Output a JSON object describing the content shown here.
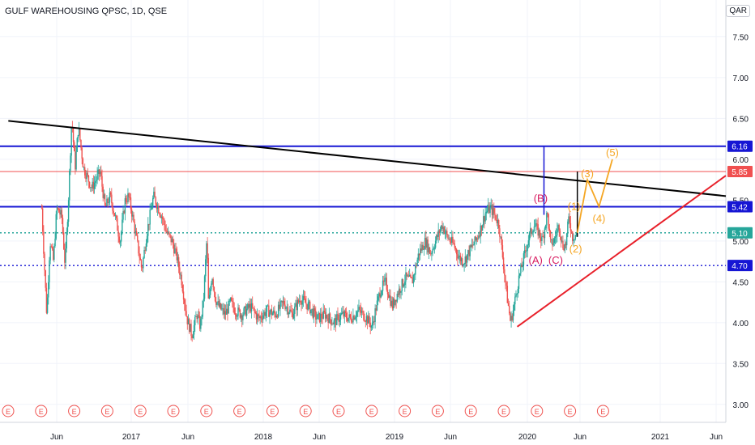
{
  "header": {
    "title": "GULF WAREHOUSING QPSC, 1D, QSE",
    "currency": "QAR"
  },
  "chart_data": {
    "type": "candlestick",
    "x_ticks": [
      "Jun",
      "2017",
      "Jun",
      "2018",
      "Jun",
      "2019",
      "Jun",
      "2020",
      "Jun",
      "2021",
      "Jun"
    ],
    "y_ticks": [
      "7.50",
      "7.00",
      "6.50",
      "6.00",
      "5.50",
      "5.00",
      "4.50",
      "4.00",
      "3.50",
      "3.00"
    ],
    "y_tick_values": [
      7.5,
      7.0,
      6.5,
      6.0,
      5.5,
      5.0,
      4.5,
      4.0,
      3.5,
      3.0
    ],
    "ylim": [
      2.78,
      7.95
    ],
    "price_path": [
      [
        0.0,
        5.4
      ],
      [
        0.03,
        4.1
      ],
      [
        0.05,
        5.0
      ],
      [
        0.07,
        4.75
      ],
      [
        0.09,
        5.4
      ],
      [
        0.12,
        5.3
      ],
      [
        0.14,
        4.7
      ],
      [
        0.16,
        5.5
      ],
      [
        0.18,
        6.5
      ],
      [
        0.2,
        5.9
      ],
      [
        0.22,
        6.4
      ],
      [
        0.25,
        5.9
      ],
      [
        0.3,
        5.65
      ],
      [
        0.35,
        5.85
      ],
      [
        0.38,
        5.4
      ],
      [
        0.41,
        5.55
      ],
      [
        0.44,
        5.3
      ],
      [
        0.47,
        5.0
      ],
      [
        0.5,
        5.5
      ],
      [
        0.52,
        5.55
      ],
      [
        0.54,
        5.35
      ],
      [
        0.57,
        5.0
      ],
      [
        0.6,
        4.65
      ],
      [
        0.63,
        5.1
      ],
      [
        0.67,
        5.55
      ],
      [
        0.69,
        5.45
      ],
      [
        0.72,
        5.3
      ],
      [
        0.75,
        5.1
      ],
      [
        0.78,
        5.0
      ],
      [
        0.81,
        4.8
      ],
      [
        0.84,
        4.5
      ],
      [
        0.87,
        4.05
      ],
      [
        0.9,
        3.85
      ],
      [
        0.93,
        4.1
      ],
      [
        0.95,
        3.95
      ],
      [
        0.97,
        4.3
      ],
      [
        0.99,
        5.05
      ],
      [
        1.0,
        4.2
      ],
      [
        1.02,
        4.6
      ],
      [
        1.04,
        4.3
      ],
      [
        1.06,
        4.2
      ],
      [
        1.08,
        4.15
      ],
      [
        1.1,
        4.1
      ],
      [
        1.13,
        4.25
      ],
      [
        1.16,
        4.15
      ],
      [
        1.2,
        4.1
      ],
      [
        1.25,
        4.2
      ],
      [
        1.3,
        4.05
      ],
      [
        1.35,
        4.15
      ],
      [
        1.4,
        4.1
      ],
      [
        1.45,
        4.25
      ],
      [
        1.5,
        4.1
      ],
      [
        1.55,
        4.3
      ],
      [
        1.6,
        4.2
      ],
      [
        1.65,
        4.05
      ],
      [
        1.7,
        4.1
      ],
      [
        1.75,
        4.0
      ],
      [
        1.8,
        4.1
      ],
      [
        1.85,
        4.05
      ],
      [
        1.9,
        4.15
      ],
      [
        1.95,
        4.05
      ],
      [
        1.98,
        3.95
      ],
      [
        2.0,
        4.15
      ],
      [
        2.03,
        4.4
      ],
      [
        2.06,
        4.5
      ],
      [
        2.1,
        4.2
      ],
      [
        2.13,
        4.35
      ],
      [
        2.18,
        4.55
      ],
      [
        2.22,
        4.5
      ],
      [
        2.26,
        4.85
      ],
      [
        2.3,
        5.0
      ],
      [
        2.33,
        4.85
      ],
      [
        2.36,
        5.0
      ],
      [
        2.4,
        5.2
      ],
      [
        2.43,
        5.05
      ],
      [
        2.47,
        4.95
      ],
      [
        2.5,
        4.8
      ],
      [
        2.53,
        4.75
      ],
      [
        2.57,
        4.9
      ],
      [
        2.6,
        5.0
      ],
      [
        2.63,
        5.15
      ],
      [
        2.66,
        5.35
      ],
      [
        2.69,
        5.4
      ],
      [
        2.72,
        5.3
      ],
      [
        2.74,
        5.2
      ],
      [
        2.76,
        4.85
      ],
      [
        2.79,
        4.3
      ],
      [
        2.81,
        4.0
      ],
      [
        2.83,
        4.2
      ],
      [
        2.86,
        4.55
      ],
      [
        2.89,
        4.8
      ],
      [
        2.92,
        5.05
      ],
      [
        2.95,
        5.2
      ],
      [
        2.98,
        5.1
      ],
      [
        3.0,
        5.0
      ],
      [
        3.03,
        5.35
      ],
      [
        3.05,
        4.95
      ],
      [
        3.07,
        5.0
      ],
      [
        3.1,
        5.2
      ],
      [
        3.12,
        4.95
      ],
      [
        3.14,
        4.95
      ],
      [
        3.16,
        5.3
      ],
      [
        3.18,
        5.05
      ],
      [
        3.21,
        5.1
      ]
    ],
    "x_range": [
      -0.25,
      4.1
    ],
    "horizontal_levels": [
      {
        "value": 6.16,
        "label": "6.16",
        "style": "solid",
        "color": "#1616d4"
      },
      {
        "value": 5.85,
        "label": "5.85",
        "style": "thin",
        "color": "#f05050"
      },
      {
        "value": 5.42,
        "label": "5.42",
        "style": "solid",
        "color": "#1616d4"
      },
      {
        "value": 5.1,
        "label": "5.10",
        "style": "dotted",
        "color": "#26a69a"
      },
      {
        "value": 4.7,
        "label": "4.70",
        "style": "dotted",
        "color": "#1616d4"
      }
    ],
    "trendlines": [
      {
        "name": "descending",
        "color": "#000000",
        "from": [
          -0.2,
          6.47
        ],
        "to": [
          4.1,
          5.55
        ]
      },
      {
        "name": "ascending",
        "color": "#e8202a",
        "from": [
          2.85,
          3.95
        ],
        "to": [
          4.1,
          5.8
        ]
      }
    ],
    "wave_labels": [
      {
        "text": "(B)",
        "color": "#d81b60",
        "at": [
          2.99,
          5.48
        ]
      },
      {
        "text": "(A)",
        "color": "#d81b60",
        "at": [
          2.96,
          4.72
        ]
      },
      {
        "text": "(C)",
        "color": "#d81b60",
        "at": [
          3.08,
          4.72
        ]
      },
      {
        "text": "(1)",
        "color": "#f5a623",
        "at": [
          3.19,
          5.38
        ]
      },
      {
        "text": "(2)",
        "color": "#f5a623",
        "at": [
          3.2,
          4.86
        ]
      },
      {
        "text": "(3)",
        "color": "#f5a623",
        "at": [
          3.27,
          5.78
        ]
      },
      {
        "text": "(4)",
        "color": "#f5a623",
        "at": [
          3.34,
          5.23
        ]
      },
      {
        "text": "(5)",
        "color": "#f5a623",
        "at": [
          3.42,
          6.04
        ]
      }
    ],
    "projection": [
      [
        3.21,
        5.1
      ],
      [
        3.27,
        5.75
      ],
      [
        3.34,
        5.42
      ],
      [
        3.42,
        6.0
      ]
    ],
    "measure_lines": [
      {
        "at": 3.01,
        "from": 5.32,
        "to": 6.16,
        "color": "#1616d4"
      },
      {
        "at": 3.21,
        "from": 5.05,
        "to": 5.85,
        "color": "#000000"
      }
    ],
    "earnings_marker": "E",
    "earnings_count": 19,
    "grid": true,
    "axis_position": "right"
  }
}
